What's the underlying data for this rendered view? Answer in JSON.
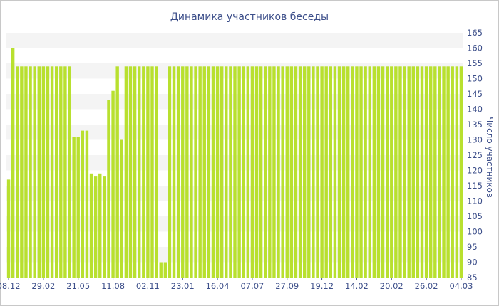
{
  "chart_data": {
    "type": "bar",
    "title": "Динамика участников беседы",
    "xlabel": "",
    "ylabel": "Число участников",
    "ylim": [
      85,
      165
    ],
    "y_ticks": [
      85,
      90,
      95,
      100,
      105,
      110,
      115,
      120,
      125,
      130,
      135,
      140,
      145,
      150,
      155,
      160,
      165
    ],
    "x_tick_labels": [
      {
        "index": 0,
        "label": "08.12"
      },
      {
        "index": 8,
        "label": "29.02"
      },
      {
        "index": 16,
        "label": "21.05"
      },
      {
        "index": 24,
        "label": "11.08"
      },
      {
        "index": 32,
        "label": "02.11"
      },
      {
        "index": 40,
        "label": "23.01"
      },
      {
        "index": 48,
        "label": "16.04"
      },
      {
        "index": 56,
        "label": "07.07"
      },
      {
        "index": 64,
        "label": "27.09"
      },
      {
        "index": 72,
        "label": "19.12"
      },
      {
        "index": 80,
        "label": "14.02"
      },
      {
        "index": 88,
        "label": "20.02"
      },
      {
        "index": 96,
        "label": "26.02"
      },
      {
        "index": 104,
        "label": "04.03"
      }
    ],
    "values": [
      117,
      160,
      154,
      154,
      154,
      154,
      154,
      154,
      154,
      154,
      154,
      154,
      154,
      154,
      154,
      131,
      131,
      133,
      133,
      119,
      118,
      119,
      118,
      143,
      146,
      154,
      130,
      154,
      154,
      154,
      154,
      154,
      154,
      154,
      154,
      90,
      90,
      154,
      154,
      154,
      154,
      154,
      154,
      154,
      154,
      154,
      154,
      154,
      154,
      154,
      154,
      154,
      154,
      154,
      154,
      154,
      154,
      154,
      154,
      154,
      154,
      154,
      154,
      154,
      154,
      154,
      154,
      154,
      154,
      154,
      154,
      154,
      154,
      154,
      154,
      154,
      154,
      154,
      154,
      154,
      154,
      154,
      154,
      154,
      154,
      154,
      154,
      154,
      154,
      154,
      154,
      154,
      154,
      154,
      154,
      154,
      154,
      154,
      154,
      154,
      154,
      154,
      154,
      154,
      154
    ],
    "grid": true,
    "legend": false,
    "colors": {
      "bar": "#b8e02f",
      "text": "#3d4f8a",
      "band": "#f4f4f4",
      "axis": "#4a5a8a"
    }
  }
}
